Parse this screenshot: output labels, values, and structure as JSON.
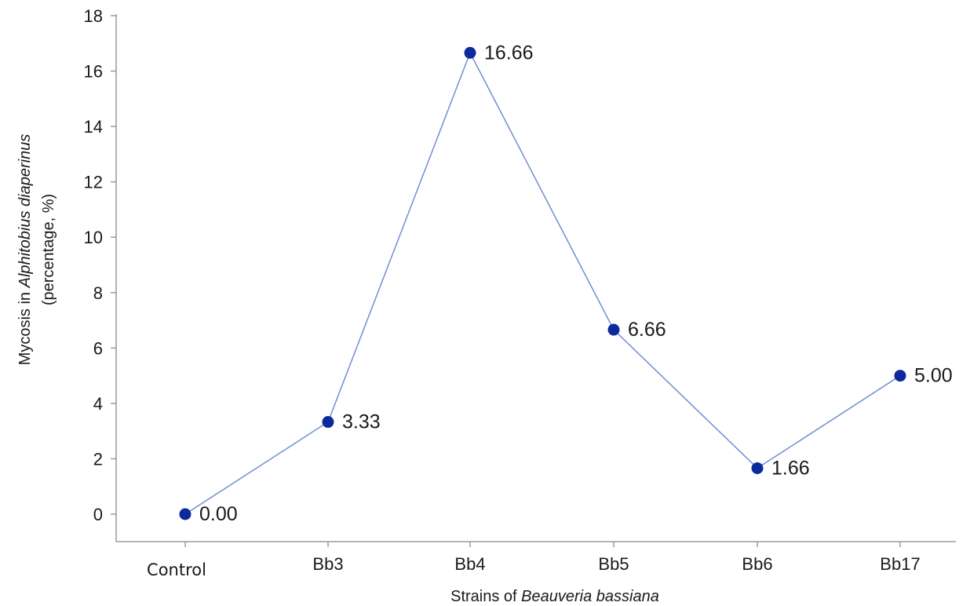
{
  "chart_data": {
    "type": "line",
    "categories": [
      "Control",
      "Bb3",
      "Bb4",
      "Bb5",
      "Bb6",
      "Bb17"
    ],
    "series": [
      {
        "values": [
          0.0,
          3.33,
          16.66,
          6.66,
          1.66,
          5.0
        ]
      }
    ],
    "data_labels": [
      "0.00",
      "3.33",
      "16.66",
      "6.66",
      "1.66",
      "5.00"
    ],
    "title": "",
    "xlabel": {
      "prefix": "Strains of ",
      "italic": "Beauveria bassiana"
    },
    "ylabel": {
      "line1_prefix": "Mycosis in ",
      "line1_italic": "Alphitobius diaperinus",
      "line2": "(percentage, %)"
    },
    "ylim": [
      0,
      18
    ],
    "yticks": [
      0,
      2,
      4,
      6,
      8,
      10,
      12,
      14,
      16,
      18
    ],
    "grid": false,
    "legend": "none",
    "colors": {
      "line": "#6f8fd0",
      "marker": "#0b2a9b",
      "axis": "#9a9a9a"
    }
  }
}
